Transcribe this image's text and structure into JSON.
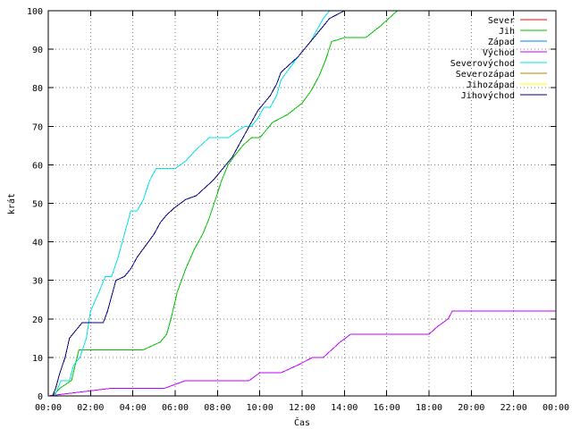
{
  "chart_data": {
    "type": "line",
    "xlabel": "Čas",
    "ylabel": "krát",
    "xlim": [
      0,
      24
    ],
    "ylim": [
      0,
      100
    ],
    "x_ticks": [
      0,
      2,
      4,
      6,
      8,
      10,
      12,
      14,
      16,
      18,
      20,
      22,
      24
    ],
    "x_tick_labels": [
      "00:00",
      "02:00",
      "04:00",
      "06:00",
      "08:00",
      "10:00",
      "12:00",
      "14:00",
      "16:00",
      "18:00",
      "20:00",
      "22:00",
      "00:00"
    ],
    "y_ticks": [
      0,
      10,
      20,
      30,
      40,
      50,
      60,
      70,
      80,
      90,
      100
    ],
    "y_tick_labels": [
      "0",
      "10",
      "20",
      "30",
      "40",
      "50",
      "60",
      "70",
      "80",
      "90",
      "100"
    ],
    "grid": true,
    "legend_position": "top-right",
    "series": [
      {
        "name": "Sever",
        "color": "#ff0000",
        "x": [],
        "y": []
      },
      {
        "name": "Jih",
        "color": "#00c000",
        "x": [
          0.2,
          0.55,
          1.1,
          1.45,
          3.0,
          4.5,
          4.9,
          5.3,
          5.6,
          5.8,
          6.1,
          6.5,
          6.9,
          7.3,
          7.6,
          7.9,
          8.2,
          8.5,
          8.9,
          9.2,
          9.6,
          10.0,
          10.6,
          11.3,
          12.0,
          12.4,
          12.8,
          13.1,
          13.4,
          14.0,
          15.0,
          15.7,
          16.3,
          16.5
        ],
        "y": [
          0,
          2,
          4,
          12,
          12,
          12,
          13,
          14,
          16,
          20,
          27,
          33,
          38,
          42,
          46,
          51,
          56,
          60,
          63,
          65,
          67,
          67,
          71,
          73,
          76,
          79,
          83,
          87,
          92,
          93,
          93,
          96,
          99,
          100
        ]
      },
      {
        "name": "Západ",
        "color": "#0080ff",
        "x": [],
        "y": []
      },
      {
        "name": "Východ",
        "color": "#c000ff",
        "x": [
          0,
          3.0,
          4.0,
          5.5,
          6.5,
          8.0,
          9.5,
          10.0,
          11.0,
          11.8,
          12.5,
          13.0,
          13.8,
          14.3,
          15.0,
          16.5,
          18.0,
          18.4,
          18.9,
          19.1,
          19.5,
          22.0,
          24.0
        ],
        "y": [
          0,
          2,
          2,
          2,
          4,
          4,
          4,
          6,
          6,
          8,
          10,
          10,
          14,
          16,
          16,
          16,
          16,
          18,
          20,
          22,
          22,
          22,
          22
        ]
      },
      {
        "name": "Severovýchod",
        "color": "#00e0e0",
        "x": [
          0.3,
          0.6,
          1.0,
          1.2,
          1.5,
          1.8,
          2.0,
          2.4,
          2.7,
          3.0,
          3.3,
          3.6,
          3.9,
          4.2,
          4.5,
          4.8,
          5.1,
          5.5,
          6.0,
          6.5,
          7.0,
          7.6,
          8.0,
          8.5,
          9.0,
          9.3,
          9.6,
          9.9,
          10.2,
          10.5,
          10.8,
          11.0,
          11.4,
          11.8,
          12.1,
          12.4,
          12.7,
          13.0,
          13.3
        ],
        "y": [
          0,
          4,
          4,
          8,
          10,
          15,
          22,
          27,
          31,
          31,
          36,
          42,
          48,
          48,
          51,
          56,
          59,
          59,
          59,
          61,
          64,
          67,
          67,
          67,
          69,
          70,
          70,
          72,
          75,
          75,
          78,
          82,
          85,
          88,
          90,
          92,
          95,
          98,
          100
        ]
      },
      {
        "name": "Severozápad",
        "color": "#c08000",
        "x": [],
        "y": []
      },
      {
        "name": "Jihozápad",
        "color": "#ffff00",
        "x": [],
        "y": []
      },
      {
        "name": "Jihovýchod",
        "color": "#000080",
        "x": [
          0.2,
          0.35,
          0.55,
          0.8,
          1.0,
          1.3,
          1.6,
          2.0,
          2.6,
          2.8,
          3.0,
          3.2,
          3.6,
          3.9,
          4.2,
          4.6,
          5.0,
          5.3,
          5.6,
          6.0,
          6.5,
          7.0,
          7.4,
          7.8,
          8.1,
          8.4,
          8.7,
          9.0,
          9.3,
          9.6,
          9.9,
          10.2,
          10.5,
          10.8,
          11.0,
          11.4,
          11.8,
          12.1,
          12.4,
          12.7,
          13.0,
          13.3,
          14.0
        ],
        "y": [
          0,
          2,
          6,
          10,
          15,
          17,
          19,
          19,
          19,
          22,
          26,
          30,
          31,
          33,
          36,
          39,
          42,
          45,
          47,
          49,
          51,
          52,
          54,
          56,
          58,
          60,
          62,
          65,
          68,
          71,
          74,
          76,
          78,
          81,
          84,
          86,
          88,
          90,
          92,
          94,
          96,
          98,
          100
        ]
      }
    ]
  }
}
